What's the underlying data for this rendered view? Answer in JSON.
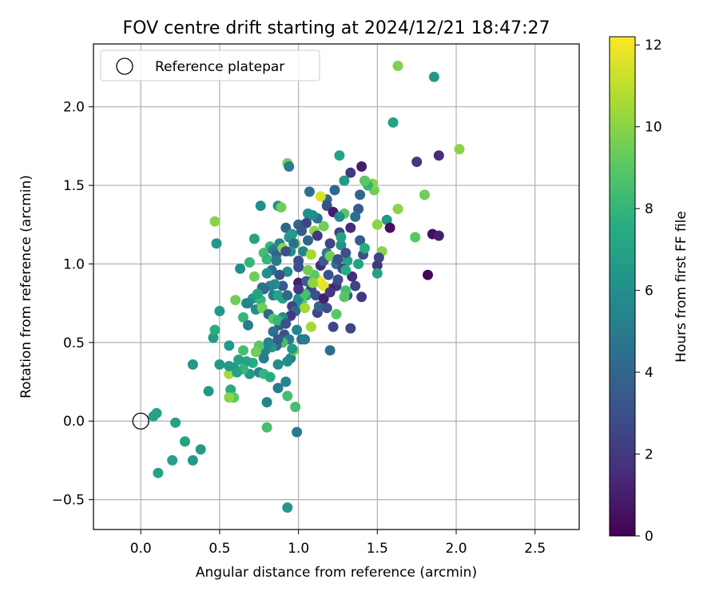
{
  "chart_data": {
    "type": "scatter",
    "title": "FOV centre drift starting at 2024/12/21 18:47:27",
    "xlabel": "Angular distance from reference (arcmin)",
    "ylabel": "Rotation from reference (arcmin)",
    "xlim": [
      -0.3,
      2.78
    ],
    "ylim": [
      -0.69,
      2.4
    ],
    "xticks": [
      0.0,
      0.5,
      1.0,
      1.5,
      2.0,
      2.5
    ],
    "xtick_labels": [
      "0.0",
      "0.5",
      "1.0",
      "1.5",
      "2.0",
      "2.5"
    ],
    "yticks": [
      -0.5,
      0.0,
      0.5,
      1.0,
      1.5,
      2.0
    ],
    "ytick_labels": [
      "−0.5",
      "0.0",
      "0.5",
      "1.0",
      "1.5",
      "2.0"
    ],
    "grid": true,
    "legend": {
      "placement": "top-left",
      "label": "Reference platepar"
    },
    "reference_point": {
      "x": 0.0,
      "y": 0.0
    },
    "colorbar": {
      "label": "Hours from first FF file",
      "min": 0,
      "max": 12.2,
      "ticks": [
        0,
        2,
        4,
        6,
        8,
        10,
        12
      ],
      "tick_labels": [
        "0",
        "2",
        "4",
        "6",
        "8",
        "10",
        "12"
      ],
      "colormap": "viridis"
    },
    "points": [
      [
        1.63,
        2.26,
        9.8
      ],
      [
        1.86,
        2.19,
        6.5
      ],
      [
        1.6,
        1.9,
        7.0
      ],
      [
        2.02,
        1.73,
        10.0
      ],
      [
        1.89,
        1.69,
        1.5
      ],
      [
        1.75,
        1.65,
        2.0
      ],
      [
        1.8,
        1.44,
        9.5
      ],
      [
        1.74,
        1.17,
        9.0
      ],
      [
        1.85,
        1.19,
        0.5
      ],
      [
        1.89,
        1.18,
        1.0
      ],
      [
        1.82,
        0.93,
        0.2
      ],
      [
        1.63,
        1.35,
        10.0
      ],
      [
        1.56,
        1.28,
        6.5
      ],
      [
        1.58,
        1.23,
        0.5
      ],
      [
        1.53,
        1.08,
        10.0
      ],
      [
        1.51,
        1.04,
        2.5
      ],
      [
        1.5,
        0.99,
        2.0
      ],
      [
        1.5,
        0.94,
        7.0
      ],
      [
        1.5,
        1.25,
        10.0
      ],
      [
        1.48,
        1.47,
        9.5
      ],
      [
        1.47,
        1.51,
        10.0
      ],
      [
        1.44,
        1.5,
        8.0
      ],
      [
        1.4,
        1.62,
        1.0
      ],
      [
        1.33,
        1.58,
        2.0
      ],
      [
        1.29,
        1.53,
        6.5
      ],
      [
        1.26,
        1.69,
        7.0
      ],
      [
        1.42,
        1.53,
        9.0
      ],
      [
        1.39,
        1.44,
        4.0
      ],
      [
        1.38,
        1.35,
        3.5
      ],
      [
        1.36,
        1.3,
        4.5
      ],
      [
        1.33,
        1.23,
        1.5
      ],
      [
        1.29,
        1.32,
        9.0
      ],
      [
        1.23,
        1.47,
        4.0
      ],
      [
        1.18,
        1.41,
        4.0
      ],
      [
        1.14,
        1.43,
        11.5
      ],
      [
        1.07,
        1.46,
        4.5
      ],
      [
        1.0,
        1.25,
        4.0
      ],
      [
        1.06,
        1.32,
        6.0
      ],
      [
        1.1,
        1.21,
        10.0
      ],
      [
        1.12,
        1.18,
        2.0
      ],
      [
        1.06,
        1.15,
        4.0
      ],
      [
        1.03,
        1.08,
        5.5
      ],
      [
        1.0,
        1.02,
        3.0
      ],
      [
        1.0,
        0.98,
        3.0
      ],
      [
        1.08,
        1.06,
        10.5
      ],
      [
        1.14,
        0.99,
        1.5
      ],
      [
        1.16,
        1.02,
        3.5
      ],
      [
        1.18,
        1.07,
        5.0
      ],
      [
        1.2,
        1.05,
        9.5
      ],
      [
        1.24,
        1.0,
        4.5
      ],
      [
        1.27,
        1.12,
        6.0
      ],
      [
        1.31,
        1.02,
        7.0
      ],
      [
        1.38,
        1.0,
        7.0
      ],
      [
        1.41,
        1.06,
        3.0
      ],
      [
        1.39,
        1.15,
        3.5
      ],
      [
        1.42,
        1.1,
        7.5
      ],
      [
        1.34,
        0.92,
        1.5
      ],
      [
        1.36,
        0.86,
        2.5
      ],
      [
        1.4,
        0.79,
        2.0
      ],
      [
        1.31,
        0.8,
        3.5
      ],
      [
        1.3,
        0.83,
        8.5
      ],
      [
        1.29,
        0.79,
        9.0
      ],
      [
        1.24,
        0.86,
        2.0
      ],
      [
        1.2,
        0.84,
        1.0
      ],
      [
        1.19,
        0.93,
        3.0
      ],
      [
        1.14,
        0.88,
        11.0
      ],
      [
        1.16,
        0.86,
        11.8
      ],
      [
        1.12,
        0.9,
        12.0
      ],
      [
        1.1,
        0.93,
        9.0
      ],
      [
        1.06,
        0.96,
        9.5
      ],
      [
        1.08,
        0.84,
        2.5
      ],
      [
        1.05,
        0.8,
        7.0
      ],
      [
        1.02,
        0.76,
        9.0
      ],
      [
        1.0,
        0.88,
        1.0
      ],
      [
        0.99,
        0.75,
        6.5
      ],
      [
        0.96,
        0.73,
        2.5
      ],
      [
        0.93,
        0.95,
        6.0
      ],
      [
        0.9,
        0.86,
        3.5
      ],
      [
        0.88,
        0.93,
        3.0
      ],
      [
        0.85,
        0.87,
        6.0
      ],
      [
        0.82,
        0.86,
        5.5
      ],
      [
        0.78,
        0.84,
        4.0
      ],
      [
        0.74,
        0.8,
        4.5
      ],
      [
        0.71,
        0.78,
        6.5
      ],
      [
        0.76,
        0.77,
        8.0
      ],
      [
        0.73,
        0.71,
        6.0
      ],
      [
        0.77,
        0.72,
        9.5
      ],
      [
        0.81,
        0.68,
        4.0
      ],
      [
        0.84,
        0.65,
        9.0
      ],
      [
        0.88,
        0.61,
        3.5
      ],
      [
        0.91,
        0.55,
        3.0
      ],
      [
        0.94,
        0.52,
        5.0
      ],
      [
        0.9,
        0.5,
        8.5
      ],
      [
        0.86,
        0.48,
        4.0
      ],
      [
        0.83,
        0.47,
        6.5
      ],
      [
        0.79,
        0.45,
        5.5
      ],
      [
        0.75,
        0.48,
        9.0
      ],
      [
        0.73,
        0.44,
        9.5
      ],
      [
        0.71,
        0.37,
        7.5
      ],
      [
        0.67,
        0.38,
        7.0
      ],
      [
        0.65,
        0.45,
        8.5
      ],
      [
        0.62,
        0.39,
        7.0
      ],
      [
        0.59,
        0.34,
        6.5
      ],
      [
        0.56,
        0.3,
        10.5
      ],
      [
        0.56,
        0.35,
        6.5
      ],
      [
        0.6,
        0.77,
        9.5
      ],
      [
        0.67,
        0.75,
        6.0
      ],
      [
        0.65,
        0.66,
        8.0
      ],
      [
        0.68,
        0.61,
        5.0
      ],
      [
        0.63,
        0.97,
        6.0
      ],
      [
        0.69,
        1.01,
        8.0
      ],
      [
        0.72,
        0.92,
        9.5
      ],
      [
        0.72,
        1.16,
        7.0
      ],
      [
        0.78,
        1.07,
        8.5
      ],
      [
        0.76,
        1.37,
        6.0
      ],
      [
        0.8,
        1.03,
        8.0
      ],
      [
        0.82,
        1.11,
        8.0
      ],
      [
        0.84,
        1.09,
        5.0
      ],
      [
        0.86,
        1.06,
        4.0
      ],
      [
        0.87,
        1.37,
        6.0
      ],
      [
        0.88,
        1.13,
        5.5
      ],
      [
        0.9,
        1.1,
        10.0
      ],
      [
        0.92,
        1.23,
        4.0
      ],
      [
        0.94,
        1.17,
        6.5
      ],
      [
        0.96,
        1.19,
        6.5
      ],
      [
        0.98,
        1.13,
        10.0
      ],
      [
        0.93,
        1.64,
        9.5
      ],
      [
        0.94,
        1.62,
        5.0
      ],
      [
        0.89,
        1.36,
        9.5
      ],
      [
        0.86,
        1.02,
        5.0
      ],
      [
        0.83,
        0.96,
        4.5
      ],
      [
        0.8,
        0.94,
        6.0
      ],
      [
        0.77,
        0.85,
        4.5
      ],
      [
        0.74,
        0.81,
        7.0
      ],
      [
        0.68,
        0.75,
        5.5
      ],
      [
        0.46,
        0.53,
        6.5
      ],
      [
        0.47,
        0.58,
        7.5
      ],
      [
        0.48,
        1.13,
        6.5
      ],
      [
        0.47,
        1.27,
        10.0
      ],
      [
        0.5,
        0.7,
        6.5
      ],
      [
        0.5,
        0.36,
        6.5
      ],
      [
        0.56,
        0.48,
        6.5
      ],
      [
        0.57,
        0.2,
        7.5
      ],
      [
        0.59,
        0.15,
        9.0
      ],
      [
        0.56,
        0.15,
        10.0
      ],
      [
        0.43,
        0.19,
        6.5
      ],
      [
        0.33,
        0.36,
        6.5
      ],
      [
        0.38,
        -0.18,
        6.5
      ],
      [
        0.33,
        -0.25,
        6.5
      ],
      [
        0.28,
        -0.13,
        7.0
      ],
      [
        0.2,
        -0.25,
        7.0
      ],
      [
        0.22,
        -0.01,
        7.0
      ],
      [
        0.1,
        0.05,
        7.0
      ],
      [
        0.08,
        0.03,
        7.0
      ],
      [
        0.11,
        -0.33,
        7.0
      ],
      [
        0.8,
        -0.04,
        8.5
      ],
      [
        0.93,
        -0.55,
        6.5
      ],
      [
        0.99,
        -0.07,
        5.0
      ],
      [
        0.98,
        0.09,
        8.5
      ],
      [
        0.93,
        0.16,
        8.5
      ],
      [
        0.8,
        0.12,
        5.5
      ],
      [
        0.87,
        0.21,
        5.0
      ],
      [
        0.92,
        0.25,
        5.5
      ],
      [
        0.95,
        0.4,
        5.5
      ],
      [
        0.93,
        0.38,
        6.0
      ],
      [
        0.87,
        0.36,
        6.0
      ],
      [
        0.97,
        0.45,
        9.5
      ],
      [
        0.96,
        0.46,
        6.5
      ],
      [
        0.99,
        0.58,
        5.5
      ],
      [
        1.02,
        0.52,
        4.5
      ],
      [
        1.04,
        0.52,
        5.0
      ],
      [
        1.08,
        0.6,
        10.5
      ],
      [
        1.12,
        0.69,
        2.5
      ],
      [
        1.13,
        0.73,
        4.0
      ],
      [
        1.2,
        0.45,
        4.5
      ],
      [
        1.22,
        0.6,
        2.5
      ],
      [
        1.24,
        0.68,
        9.0
      ],
      [
        1.33,
        0.59,
        2.5
      ],
      [
        1.18,
        0.72,
        3.0
      ],
      [
        1.04,
        0.72,
        10.5
      ],
      [
        1.0,
        0.78,
        6.0
      ],
      [
        1.04,
        0.81,
        8.5
      ],
      [
        0.98,
        0.7,
        4.0
      ],
      [
        0.95,
        0.67,
        2.0
      ],
      [
        0.9,
        0.66,
        6.0
      ],
      [
        0.87,
        0.64,
        8.0
      ],
      [
        0.84,
        0.57,
        4.5
      ],
      [
        0.87,
        0.52,
        3.5
      ],
      [
        0.92,
        0.62,
        3.0
      ],
      [
        0.81,
        0.5,
        5.5
      ],
      [
        0.78,
        0.4,
        5.0
      ],
      [
        0.75,
        0.31,
        5.5
      ],
      [
        0.69,
        0.3,
        6.5
      ],
      [
        0.65,
        0.33,
        8.0
      ],
      [
        0.61,
        0.31,
        7.0
      ],
      [
        0.78,
        0.3,
        8.0
      ],
      [
        0.82,
        0.28,
        7.5
      ],
      [
        0.84,
        0.8,
        5.0
      ],
      [
        0.87,
        0.8,
        7.0
      ],
      [
        0.9,
        0.78,
        7.0
      ],
      [
        0.93,
        0.8,
        4.0
      ],
      [
        1.0,
        0.84,
        2.0
      ],
      [
        1.05,
        0.89,
        3.5
      ],
      [
        1.09,
        0.88,
        10.0
      ],
      [
        1.11,
        0.8,
        3.0
      ],
      [
        1.16,
        0.78,
        1.0
      ],
      [
        1.2,
        0.82,
        2.0
      ],
      [
        1.25,
        0.9,
        3.0
      ],
      [
        1.28,
        0.97,
        2.5
      ],
      [
        1.3,
        0.96,
        7.5
      ],
      [
        1.25,
        1.03,
        3.0
      ],
      [
        1.2,
        1.13,
        2.5
      ],
      [
        1.16,
        1.24,
        9.5
      ],
      [
        1.12,
        1.29,
        4.5
      ],
      [
        1.09,
        1.31,
        6.0
      ],
      [
        1.05,
        1.26,
        2.5
      ],
      [
        1.02,
        1.21,
        3.5
      ],
      [
        0.97,
        1.13,
        4.5
      ],
      [
        0.95,
        1.08,
        6.0
      ],
      [
        0.92,
        1.08,
        3.0
      ],
      [
        1.18,
        1.37,
        3.0
      ],
      [
        1.22,
        1.33,
        1.0
      ],
      [
        1.26,
        1.3,
        6.0
      ],
      [
        1.26,
        1.2,
        2.5
      ],
      [
        1.27,
        1.17,
        7.0
      ],
      [
        1.3,
        1.07,
        3.0
      ]
    ]
  }
}
